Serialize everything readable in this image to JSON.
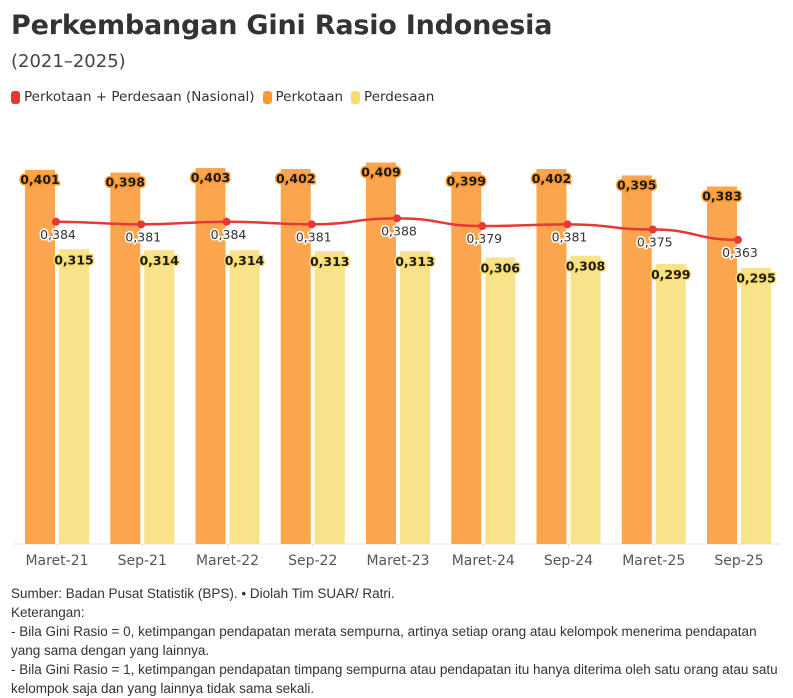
{
  "header": {
    "title": "Perkembangan Gini Rasio Indonesia",
    "subtitle": "(2021–2025)"
  },
  "legend": [
    {
      "label": "Perkotaan + Perdesaan (Nasional)",
      "color": "#e53935"
    },
    {
      "label": "Perkotaan",
      "color": "#fba64f"
    },
    {
      "label": "Perdesaan",
      "color": "#f9e38a"
    }
  ],
  "chart_data": {
    "type": "bar",
    "title": "Perkembangan Gini Rasio Indonesia",
    "subtitle": "(2021–2025)",
    "xlabel": "",
    "ylabel": "",
    "categories": [
      "Maret-21",
      "Sep-21",
      "Maret-22",
      "Sep-22",
      "Maret-23",
      "Maret-24",
      "Sep-24",
      "Maret-25",
      "Sep-25"
    ],
    "series": [
      {
        "name": "Perkotaan + Perdesaan (Nasional)",
        "kind": "line",
        "color": "#e53935",
        "values": [
          0.384,
          0.381,
          0.384,
          0.381,
          0.388,
          0.379,
          0.381,
          0.375,
          0.363
        ],
        "labels": [
          "0,384",
          "0,381",
          "0,384",
          "0,381",
          "0,388",
          "0,379",
          "0,381",
          "0,375",
          "0,363"
        ]
      },
      {
        "name": "Perkotaan",
        "kind": "bar",
        "color": "#fba64f",
        "values": [
          0.401,
          0.398,
          0.403,
          0.402,
          0.409,
          0.399,
          0.402,
          0.395,
          0.383
        ],
        "labels": [
          "0,401",
          "0,398",
          "0,403",
          "0,402",
          "0,409",
          "0,399",
          "0,402",
          "0,395",
          "0,383"
        ]
      },
      {
        "name": "Perdesaan",
        "kind": "bar",
        "color": "#f9e38a",
        "values": [
          0.315,
          0.314,
          0.314,
          0.313,
          0.313,
          0.306,
          0.308,
          0.299,
          0.295
        ],
        "labels": [
          "0,315",
          "0,314",
          "0,314",
          "0,313",
          "0,313",
          "0,306",
          "0,308",
          "0,299",
          "0,295"
        ]
      }
    ],
    "grid": false,
    "legend_position": "top-left",
    "y_axis_visible": false
  },
  "footer": {
    "source": "Sumber: Badan Pusat Statistik (BPS). • Diolah Tim SUAR/ Ratri.",
    "notes_heading": "Keterangan:",
    "note_1": "- Bila Gini Rasio = 0, ketimpangan pendapatan merata sempurna, artinya setiap orang atau kelompok menerima pendapatan yang sama dengan yang lainnya.",
    "note_2": "- Bila Gini Rasio = 1, ketimpangan pendapatan timpang sempurna atau pendapatan itu hanya diterima oleh satu orang atau satu kelompok saja dan yang lainnya tidak sama sekali."
  }
}
